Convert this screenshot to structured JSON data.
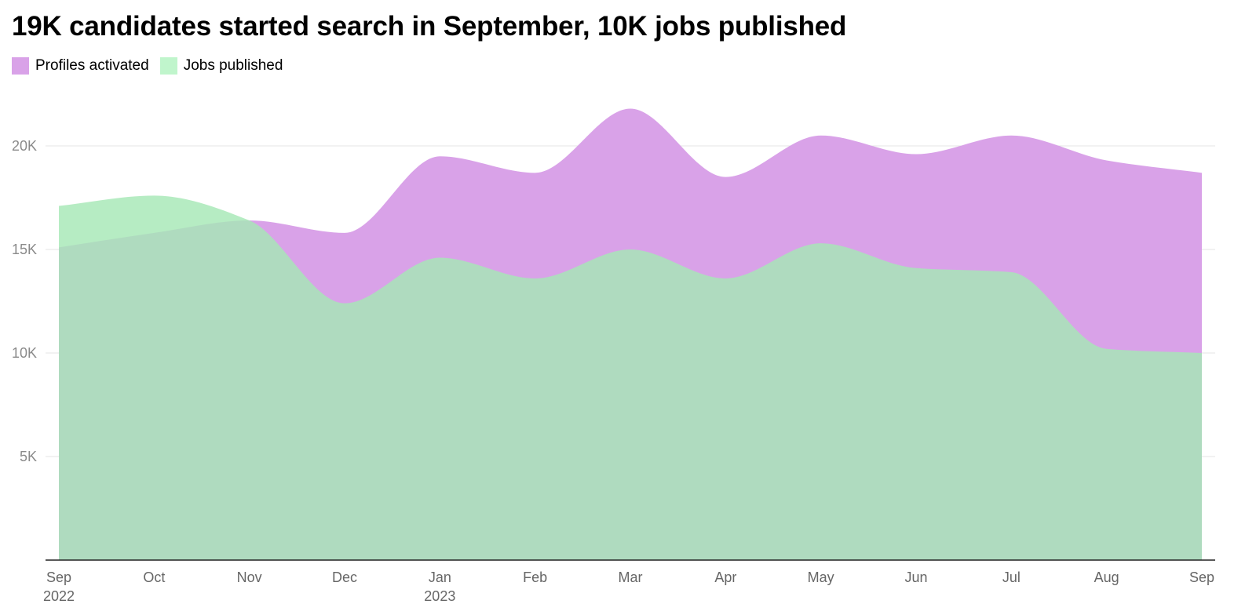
{
  "chart_data": {
    "type": "area",
    "title": "19K candidates started search in September, 10K jobs published",
    "x": [
      "Sep 2022",
      "Oct 2022",
      "Nov 2022",
      "Dec 2022",
      "Jan 2023",
      "Feb 2023",
      "Mar 2023",
      "Apr 2023",
      "May 2023",
      "Jun 2023",
      "Jul 2023",
      "Aug 2023",
      "Sep 2023"
    ],
    "x_tick_labels": [
      {
        "month": "Sep",
        "year": "2022"
      },
      {
        "month": "Oct",
        "year": ""
      },
      {
        "month": "Nov",
        "year": ""
      },
      {
        "month": "Dec",
        "year": ""
      },
      {
        "month": "Jan",
        "year": "2023"
      },
      {
        "month": "Feb",
        "year": ""
      },
      {
        "month": "Mar",
        "year": ""
      },
      {
        "month": "Apr",
        "year": ""
      },
      {
        "month": "May",
        "year": ""
      },
      {
        "month": "Jun",
        "year": ""
      },
      {
        "month": "Jul",
        "year": ""
      },
      {
        "month": "Aug",
        "year": ""
      },
      {
        "month": "Sep",
        "year": ""
      }
    ],
    "series": [
      {
        "name": "Profiles activated",
        "color": "#d9a2e8",
        "values": [
          15100,
          15800,
          16400,
          15800,
          19500,
          18700,
          21800,
          18500,
          20500,
          19600,
          20500,
          19300,
          18700
        ]
      },
      {
        "name": "Jobs published",
        "color": "#c0f5cc",
        "values": [
          17100,
          17600,
          16400,
          12400,
          14600,
          13600,
          15000,
          13600,
          15300,
          14100,
          13900,
          10200,
          10000
        ]
      }
    ],
    "overlap_color": "#b4d0c0",
    "ylim": [
      0,
      22500
    ],
    "y_ticks": [
      {
        "value": 5000,
        "label": "5K"
      },
      {
        "value": 10000,
        "label": "10K"
      },
      {
        "value": 15000,
        "label": "15K"
      },
      {
        "value": 20000,
        "label": "20K"
      }
    ],
    "xlabel": "",
    "ylabel": "",
    "grid": true,
    "legend_position": "top-left"
  }
}
